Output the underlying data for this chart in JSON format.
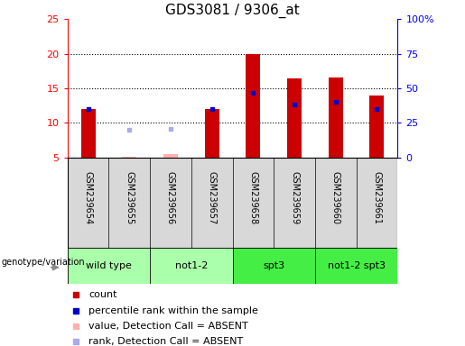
{
  "title": "GDS3081 / 9306_at",
  "samples": [
    "GSM239654",
    "GSM239655",
    "GSM239656",
    "GSM239657",
    "GSM239658",
    "GSM239659",
    "GSM239660",
    "GSM239661"
  ],
  "count_values": [
    12,
    null,
    null,
    12,
    20,
    16.4,
    16.6,
    14
  ],
  "count_absent_values": [
    null,
    5.1,
    5.5,
    null,
    null,
    null,
    null,
    null
  ],
  "rank_values": [
    12,
    null,
    null,
    12,
    14.4,
    12.7,
    13.0,
    12
  ],
  "rank_absent_values": [
    null,
    9.0,
    9.1,
    null,
    null,
    null,
    null,
    null
  ],
  "ylim_left": [
    5,
    25
  ],
  "ylim_right": [
    0,
    100
  ],
  "yticks_left": [
    5,
    10,
    15,
    20,
    25
  ],
  "ytick_labels_left": [
    "5",
    "10",
    "15",
    "20",
    "25"
  ],
  "yticks_right": [
    0,
    25,
    50,
    75,
    100
  ],
  "ytick_labels_right": [
    "0",
    "25",
    "50",
    "75",
    "100%"
  ],
  "genotype_groups": [
    {
      "label": "wild type",
      "start": 0,
      "end": 2,
      "color": "#aaffaa"
    },
    {
      "label": "not1-2",
      "start": 2,
      "end": 4,
      "color": "#aaffaa"
    },
    {
      "label": "spt3",
      "start": 4,
      "end": 6,
      "color": "#44ee44"
    },
    {
      "label": "not1-2 spt3",
      "start": 6,
      "end": 8,
      "color": "#44ee44"
    }
  ],
  "bar_color": "#cc0000",
  "bar_absent_color": "#ffb0b0",
  "rank_color": "#0000cc",
  "rank_absent_color": "#aaaaee",
  "bar_width": 0.35,
  "background_color": "#ffffff",
  "sample_bg_color": "#d8d8d8",
  "legend_items": [
    {
      "label": "count",
      "color": "#cc0000"
    },
    {
      "label": "percentile rank within the sample",
      "color": "#0000cc"
    },
    {
      "label": "value, Detection Call = ABSENT",
      "color": "#ffb0b0"
    },
    {
      "label": "rank, Detection Call = ABSENT",
      "color": "#aaaaee"
    }
  ],
  "genotype_label": "genotype/variation",
  "title_fontsize": 11,
  "tick_fontsize": 8,
  "legend_fontsize": 8
}
